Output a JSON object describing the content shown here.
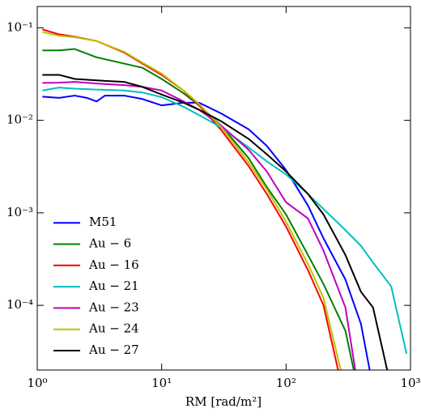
{
  "chart_data": {
    "type": "line",
    "xlabel": "RM [rad/m²]",
    "xscale": "log",
    "yscale": "log",
    "xlim": [
      1,
      1000
    ],
    "ylim": [
      2e-05,
      0.17
    ],
    "xticks": [
      {
        "value": 1,
        "label": "10⁰"
      },
      {
        "value": 10,
        "label": "10¹"
      },
      {
        "value": 100,
        "label": "10²"
      },
      {
        "value": 1000,
        "label": "10³"
      }
    ],
    "yticks": [
      {
        "value": 0.0001,
        "label": "10⁻⁴"
      },
      {
        "value": 0.001,
        "label": "10⁻³"
      },
      {
        "value": 0.01,
        "label": "10⁻²"
      },
      {
        "value": 0.1,
        "label": "10⁻¹"
      }
    ],
    "legend": "lower left",
    "series": [
      {
        "name": "M51",
        "color": "#0000ff",
        "x": [
          1.1,
          1.5,
          2,
          2.5,
          3,
          3.5,
          5,
          7,
          10,
          15,
          20,
          30,
          50,
          70,
          100,
          150,
          200,
          300,
          400,
          470
        ],
        "values": [
          0.018,
          0.0175,
          0.0185,
          0.0175,
          0.016,
          0.0185,
          0.0185,
          0.017,
          0.0145,
          0.0155,
          0.0155,
          0.0119,
          0.008,
          0.0053,
          0.0029,
          0.0012,
          0.00053,
          0.00019,
          6.3e-05,
          2e-05
        ]
      },
      {
        "name": "Au − 6",
        "color": "#008000",
        "x": [
          1.1,
          1.5,
          2,
          3,
          5,
          7,
          10,
          15,
          20,
          30,
          50,
          70,
          100,
          150,
          200,
          300,
          350
        ],
        "values": [
          0.057,
          0.057,
          0.059,
          0.048,
          0.041,
          0.037,
          0.028,
          0.0196,
          0.0145,
          0.0088,
          0.0039,
          0.0019,
          0.00096,
          0.00035,
          0.00017,
          5.3e-05,
          2e-05
        ]
      },
      {
        "name": "Au − 16",
        "color": "#ff0000",
        "x": [
          1.1,
          1.5,
          2,
          3,
          5,
          7,
          10,
          15,
          20,
          30,
          50,
          70,
          100,
          150,
          200,
          262
        ],
        "values": [
          0.096,
          0.085,
          0.08,
          0.072,
          0.054,
          0.041,
          0.031,
          0.021,
          0.0145,
          0.0079,
          0.0032,
          0.0016,
          0.00071,
          0.00024,
          0.0001,
          2e-05
        ]
      },
      {
        "name": "Au − 21",
        "color": "#00bfbf",
        "x": [
          1.1,
          1.5,
          2,
          3,
          5,
          7,
          10,
          15,
          20,
          30,
          50,
          70,
          100,
          150,
          200,
          300,
          400,
          500,
          700,
          930
        ],
        "values": [
          0.021,
          0.0226,
          0.022,
          0.0215,
          0.021,
          0.02,
          0.0178,
          0.014,
          0.0114,
          0.0084,
          0.0051,
          0.0036,
          0.0026,
          0.0016,
          0.0011,
          0.00065,
          0.00044,
          0.00029,
          0.00016,
          3e-05
        ]
      },
      {
        "name": "Au − 23",
        "color": "#bf00bf",
        "x": [
          1.1,
          1.5,
          2,
          3,
          5,
          7,
          10,
          15,
          20,
          30,
          50,
          70,
          100,
          150,
          200,
          300,
          360
        ],
        "values": [
          0.0254,
          0.0255,
          0.026,
          0.025,
          0.024,
          0.023,
          0.021,
          0.016,
          0.013,
          0.0088,
          0.0048,
          0.0028,
          0.0013,
          0.00087,
          0.00039,
          9.5e-05,
          2e-05
        ]
      },
      {
        "name": "Au − 24",
        "color": "#bfbf00",
        "x": [
          1.1,
          1.5,
          2,
          3,
          5,
          7,
          10,
          15,
          20,
          30,
          50,
          70,
          100,
          150,
          200,
          275
        ],
        "values": [
          0.09,
          0.082,
          0.079,
          0.072,
          0.055,
          0.042,
          0.032,
          0.021,
          0.015,
          0.0085,
          0.0035,
          0.0018,
          0.0008,
          0.00028,
          0.00012,
          2e-05
        ]
      },
      {
        "name": "Au − 27",
        "color": "#000000",
        "x": [
          1.1,
          1.5,
          2,
          3,
          5,
          7,
          10,
          15,
          20,
          30,
          50,
          70,
          100,
          150,
          200,
          300,
          400,
          500,
          650
        ],
        "values": [
          0.031,
          0.031,
          0.028,
          0.027,
          0.026,
          0.023,
          0.019,
          0.0155,
          0.013,
          0.0098,
          0.0063,
          0.0043,
          0.0028,
          0.0016,
          0.00096,
          0.00035,
          0.00014,
          9.5e-05,
          2e-05
        ]
      }
    ]
  }
}
